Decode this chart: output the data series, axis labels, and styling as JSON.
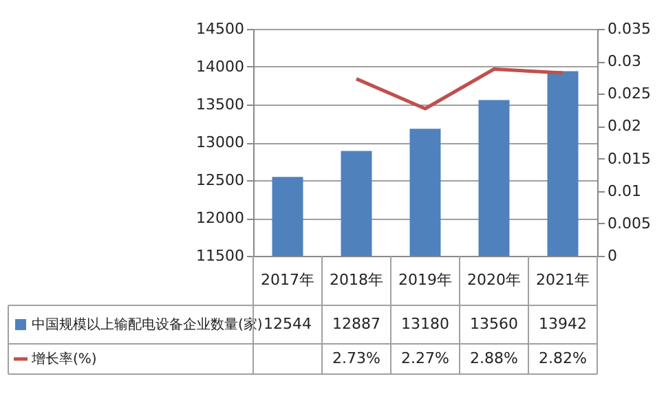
{
  "chart_data": {
    "type": "bar",
    "categories": [
      "2017年",
      "2018年",
      "2019年",
      "2020年",
      "2021年"
    ],
    "series": [
      {
        "name": "中国规模以上输配电设备企业数量(家)",
        "type": "bar",
        "color": "#4f81bd",
        "values": [
          12544,
          12887,
          13180,
          13560,
          13942
        ],
        "value_labels": [
          "12544",
          "12887",
          "13180",
          "13560",
          "13942"
        ]
      },
      {
        "name": "增长率(%)",
        "type": "line",
        "axis": "y2",
        "color": "#c0504d",
        "values": [
          null,
          0.0273,
          0.0227,
          0.0288,
          0.0282
        ],
        "value_labels": [
          null,
          "2.73%",
          "2.27%",
          "2.88%",
          "2.82%"
        ]
      }
    ],
    "ylim": [
      11500,
      14500
    ],
    "yticks": [
      11500,
      12000,
      12500,
      13000,
      13500,
      14000,
      14500
    ],
    "y2lim": [
      0,
      0.035
    ],
    "y2ticks": [
      0,
      0.005,
      0.01,
      0.015,
      0.02,
      0.025,
      0.03,
      0.035
    ],
    "grid": "y",
    "legend": "bottom",
    "line_style": "solid"
  }
}
